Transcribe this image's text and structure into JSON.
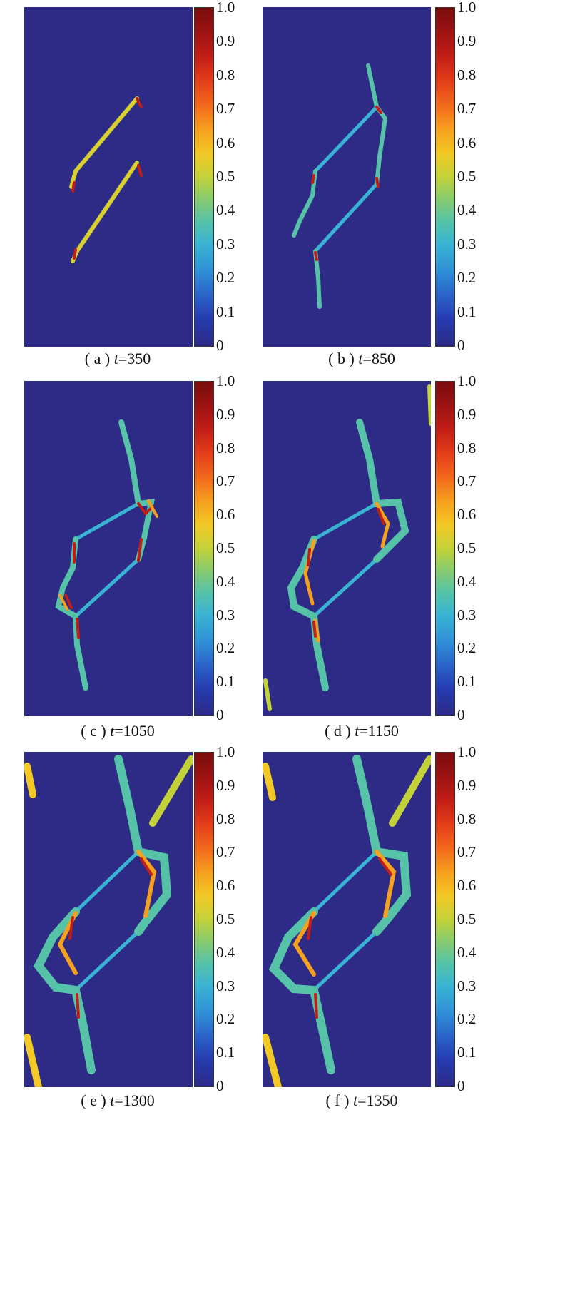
{
  "colorbar_ticks": [
    "1.0",
    "0.9",
    "0.8",
    "0.7",
    "0.6",
    "0.5",
    "0.4",
    "0.3",
    "0.2",
    "0.1",
    "0"
  ],
  "colors": {
    "background_field": "#2e2b86",
    "low": "#39b3d3",
    "mid": "#c4d23a",
    "high": "#c11d16"
  },
  "panels": [
    {
      "letter": "( a )",
      "t_label": "t",
      "t_value": "=350"
    },
    {
      "letter": "( b )",
      "t_label": "t",
      "t_value": "=850"
    },
    {
      "letter": "( c )",
      "t_label": "t",
      "t_value": "=1050"
    },
    {
      "letter": "( d )",
      "t_label": "t",
      "t_value": "=1150"
    },
    {
      "letter": "( e )",
      "t_label": "t",
      "t_value": "=1300"
    },
    {
      "letter": "( f )",
      "t_label": "t",
      "t_value": "=1350"
    }
  ]
}
